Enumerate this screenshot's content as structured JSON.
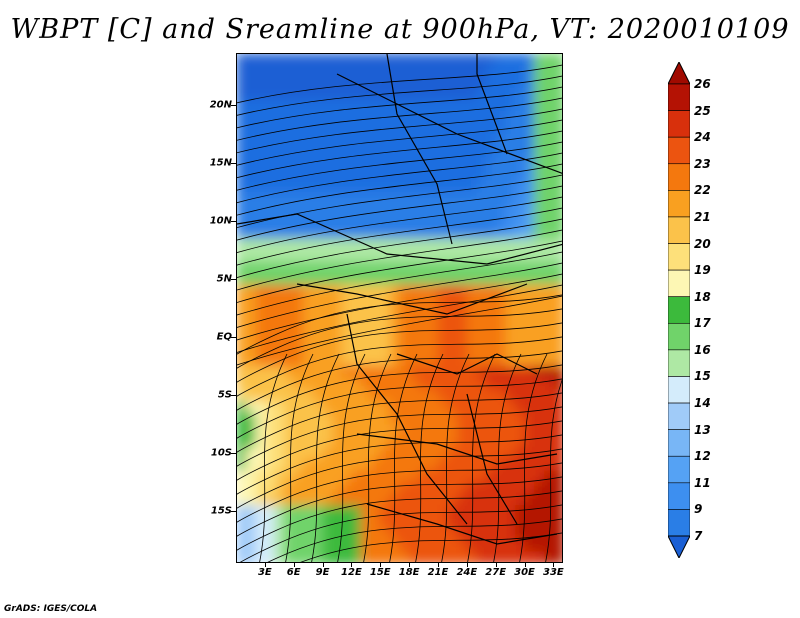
{
  "title": "WBPT [C] and Sreamline at 900hPa, VT: 2020010109",
  "footer": "GrADS: IGES/COLA",
  "map": {
    "lat_range": [
      -19.5,
      24.5
    ],
    "lon_range": [
      0,
      34
    ],
    "lat_labels": [
      {
        "lat": 20,
        "text": "20N"
      },
      {
        "lat": 15,
        "text": "15N"
      },
      {
        "lat": 10,
        "text": "10N"
      },
      {
        "lat": 5,
        "text": "5N"
      },
      {
        "lat": 0,
        "text": "EQ"
      },
      {
        "lat": -5,
        "text": "5S"
      },
      {
        "lat": -10,
        "text": "10S"
      },
      {
        "lat": -15,
        "text": "15S"
      }
    ],
    "lon_labels": [
      {
        "lon": 3,
        "text": "3E"
      },
      {
        "lon": 6,
        "text": "6E"
      },
      {
        "lon": 9,
        "text": "9E"
      },
      {
        "lon": 12,
        "text": "12E"
      },
      {
        "lon": 15,
        "text": "15E"
      },
      {
        "lon": 18,
        "text": "18E"
      },
      {
        "lon": 21,
        "text": "21E"
      },
      {
        "lon": 24,
        "text": "24E"
      },
      {
        "lon": 27,
        "text": "27E"
      },
      {
        "lon": 30,
        "text": "30E"
      },
      {
        "lon": 33,
        "text": "33E"
      }
    ]
  },
  "colorbar": {
    "levels": [
      {
        "label": "7",
        "color": "#1e6ee0"
      },
      {
        "label": "9",
        "color": "#2a7ee6"
      },
      {
        "label": "11",
        "color": "#3d8ff0"
      },
      {
        "label": "12",
        "color": "#55a2f4"
      },
      {
        "label": "13",
        "color": "#78b6f6"
      },
      {
        "label": "14",
        "color": "#a0cbf8"
      },
      {
        "label": "15",
        "color": "#d4ecfb"
      },
      {
        "label": "16",
        "color": "#aee8a4"
      },
      {
        "label": "17",
        "color": "#70d36a"
      },
      {
        "label": "18",
        "color": "#3cba3c"
      },
      {
        "label": "19",
        "color": "#fdf7b4"
      },
      {
        "label": "20",
        "color": "#fde07a"
      },
      {
        "label": "21",
        "color": "#fbc24a"
      },
      {
        "label": "22",
        "color": "#f9a020"
      },
      {
        "label": "23",
        "color": "#f4780e"
      },
      {
        "label": "24",
        "color": "#ec5410"
      },
      {
        "label": "25",
        "color": "#d8300c"
      },
      {
        "label": "26",
        "color": "#b41204"
      }
    ],
    "under_color": "#1a5fd4",
    "over_color": "#a00a00"
  }
}
